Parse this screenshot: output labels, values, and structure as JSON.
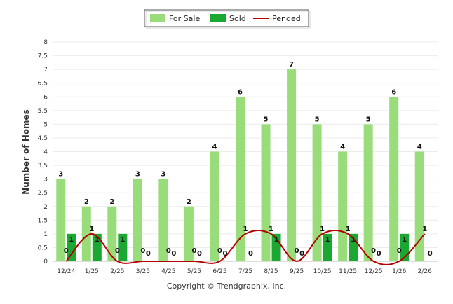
{
  "chart_data": {
    "type": "bar",
    "ylabel": "Number of Homes",
    "ylim": [
      0,
      8
    ],
    "yticks": [
      "0",
      "0.5",
      "1",
      "1.5",
      "2",
      "2.5",
      "3",
      "3.5",
      "4",
      "4.5",
      "5",
      "5.5",
      "6",
      "6.5",
      "7",
      "7.5",
      "8"
    ],
    "categories": [
      "12/24",
      "1/25",
      "2/25",
      "3/25",
      "4/25",
      "5/25",
      "6/25",
      "7/25",
      "8/25",
      "9/25",
      "10/25",
      "11/25",
      "12/25",
      "1/26",
      "2/26"
    ],
    "series": [
      {
        "name": "For Sale",
        "kind": "bar",
        "color": "#99dd7a",
        "values": [
          3,
          2,
          2,
          3,
          3,
          2,
          4,
          6,
          5,
          7,
          5,
          4,
          5,
          6,
          4
        ]
      },
      {
        "name": "Sold",
        "kind": "bar",
        "color": "#1aa832",
        "values": [
          1,
          1,
          1,
          0,
          0,
          0,
          0,
          0,
          1,
          0,
          1,
          1,
          0,
          1,
          0
        ]
      },
      {
        "name": "Pended",
        "kind": "line",
        "color": "#b30000",
        "values": [
          0,
          1,
          0,
          0,
          0,
          0,
          0,
          1,
          1,
          0,
          1,
          1,
          0,
          0,
          1
        ]
      }
    ],
    "legend": "top-center",
    "grid": true
  },
  "footer": {
    "copyright": "Copyright © Trendgraphix, Inc."
  }
}
